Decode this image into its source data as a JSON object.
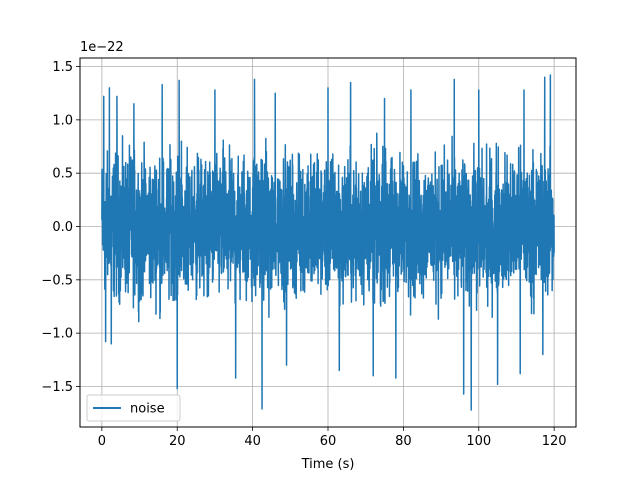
{
  "chart_data": {
    "type": "line",
    "title": "",
    "xlabel": "Time (s)",
    "ylabel": "",
    "y_scale_label": "1e−22",
    "xlim": [
      -5.8,
      125.8
    ],
    "ylim": [
      -1.88,
      1.58
    ],
    "xticks": [
      0,
      20,
      40,
      60,
      80,
      100,
      120
    ],
    "xtick_labels": [
      "0",
      "20",
      "40",
      "60",
      "80",
      "100",
      "120"
    ],
    "yticks": [
      -1.5,
      -1.0,
      -0.5,
      0.0,
      0.5,
      1.0,
      1.5
    ],
    "ytick_labels": [
      "−1.5",
      "−1.0",
      "−0.5",
      "0.0",
      "0.5",
      "1.0",
      "1.5"
    ],
    "grid": true,
    "legend_position": "lower-left",
    "series": [
      {
        "name": "noise",
        "color": "#1f77b4",
        "x_range": [
          0,
          120
        ],
        "typical_envelope": [
          -0.9,
          1.0
        ],
        "peaks": [
          {
            "x": 0.5,
            "y": 1.22
          },
          {
            "x": 2,
            "y": 1.3
          },
          {
            "x": 4,
            "y": 1.22
          },
          {
            "x": 8.5,
            "y": 1.15
          },
          {
            "x": 16,
            "y": 1.33
          },
          {
            "x": 20.5,
            "y": 1.37
          },
          {
            "x": 30,
            "y": 1.28
          },
          {
            "x": 40.5,
            "y": 1.38
          },
          {
            "x": 46,
            "y": 1.25
          },
          {
            "x": 60,
            "y": 1.3
          },
          {
            "x": 66,
            "y": 1.35
          },
          {
            "x": 75,
            "y": 1.2
          },
          {
            "x": 82,
            "y": 1.28
          },
          {
            "x": 93.5,
            "y": 1.38
          },
          {
            "x": 100,
            "y": 1.28
          },
          {
            "x": 112,
            "y": 1.28
          },
          {
            "x": 117.5,
            "y": 1.4
          },
          {
            "x": 119,
            "y": 1.42
          }
        ],
        "troughs": [
          {
            "x": 1,
            "y": -1.08
          },
          {
            "x": 2.5,
            "y": -1.1
          },
          {
            "x": 20,
            "y": -1.52
          },
          {
            "x": 35.5,
            "y": -1.42
          },
          {
            "x": 42.5,
            "y": -1.71
          },
          {
            "x": 49,
            "y": -1.3
          },
          {
            "x": 63,
            "y": -1.35
          },
          {
            "x": 72,
            "y": -1.4
          },
          {
            "x": 78,
            "y": -1.42
          },
          {
            "x": 96,
            "y": -1.57
          },
          {
            "x": 98,
            "y": -1.72
          },
          {
            "x": 105,
            "y": -1.48
          },
          {
            "x": 111,
            "y": -1.38
          },
          {
            "x": 117,
            "y": -1.2
          }
        ]
      }
    ]
  }
}
